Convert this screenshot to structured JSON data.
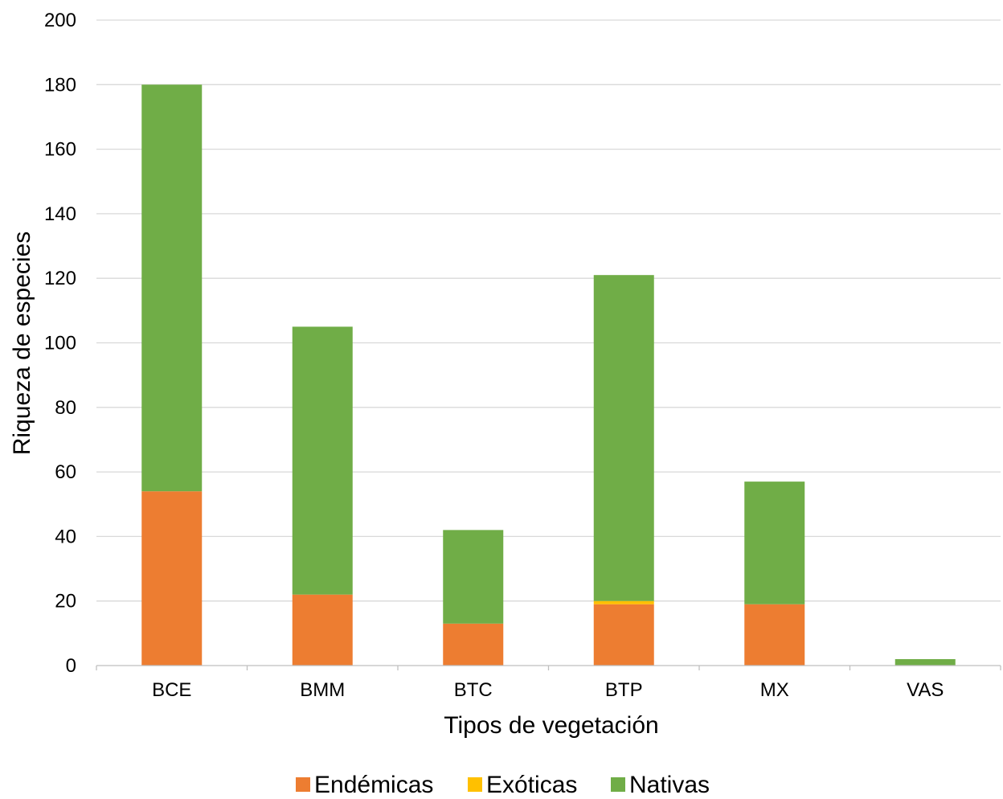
{
  "chart_data": {
    "type": "bar",
    "stacked": true,
    "title": "",
    "xlabel": "Tipos de vegetación",
    "ylabel": "Riqueza de especies",
    "ylim": [
      0,
      200
    ],
    "yticks": [
      0,
      20,
      40,
      60,
      80,
      100,
      120,
      140,
      160,
      180,
      200
    ],
    "grid": true,
    "legend_position": "bottom",
    "categories": [
      "BCE",
      "BMM",
      "BTC",
      "BTP",
      "MX",
      "VAS"
    ],
    "series": [
      {
        "name": "Endémicas",
        "color": "#ED7D31",
        "values": [
          54,
          22,
          13,
          19,
          19,
          0
        ]
      },
      {
        "name": "Exóticas",
        "color": "#FFC000",
        "values": [
          0,
          0,
          0,
          1,
          0,
          0
        ]
      },
      {
        "name": "Nativas",
        "color": "#70AD47",
        "values": [
          126,
          83,
          29,
          101,
          38,
          2
        ]
      }
    ]
  }
}
